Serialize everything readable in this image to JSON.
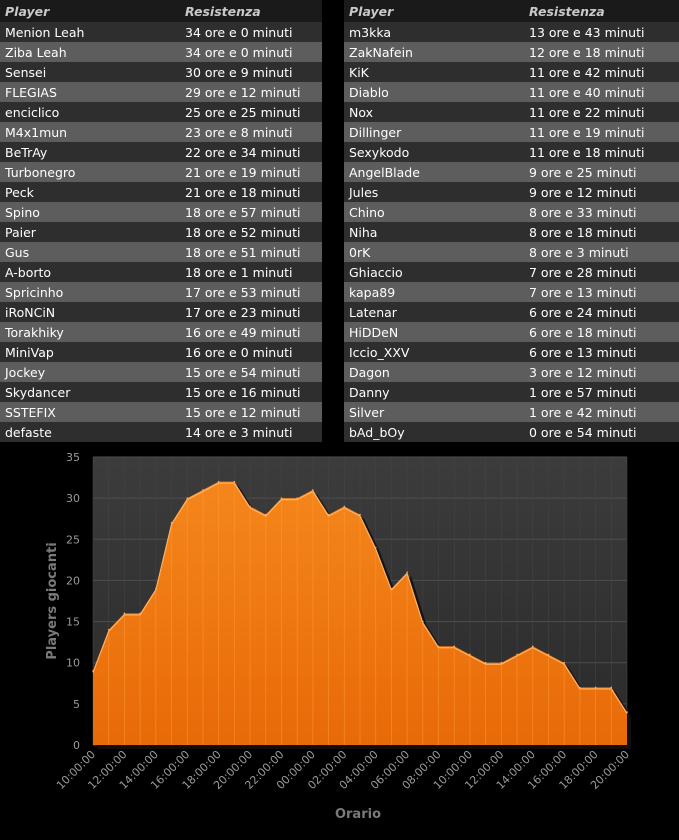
{
  "leaderboards": [
    {
      "header": {
        "player": "Player",
        "resistance": "Resistenza"
      },
      "rows": [
        [
          "Menion Leah",
          "34 ore e 0 minuti"
        ],
        [
          "Ziba Leah",
          "34 ore e 0 minuti"
        ],
        [
          "Sensei",
          "30 ore e 9 minuti"
        ],
        [
          "FLEGIAS",
          "29 ore e 12 minuti"
        ],
        [
          "enciclico",
          "25 ore e 25 minuti"
        ],
        [
          "M4x1mun",
          "23 ore e 8 minuti"
        ],
        [
          "BeTrAy",
          "22 ore e 34 minuti"
        ],
        [
          "Turbonegro",
          "21 ore e 19 minuti"
        ],
        [
          "Peck",
          "21 ore e 18 minuti"
        ],
        [
          "Spino",
          "18 ore e 57 minuti"
        ],
        [
          "Paier",
          "18 ore e 52 minuti"
        ],
        [
          "Gus",
          "18 ore e 51 minuti"
        ],
        [
          "A-borto",
          "18 ore e 1 minuti"
        ],
        [
          "Spricinho",
          "17 ore e 53 minuti"
        ],
        [
          "iRoNCiN",
          "17 ore e 23 minuti"
        ],
        [
          "Torakhiky",
          "16 ore e 49 minuti"
        ],
        [
          "MiniVap",
          "16 ore e 0 minuti"
        ],
        [
          "Jockey",
          "15 ore e 54 minuti"
        ],
        [
          "Skydancer",
          "15 ore e 16 minuti"
        ],
        [
          "SSTEFIX",
          "15 ore e 12 minuti"
        ],
        [
          "defaste",
          "14 ore e 3 minuti"
        ]
      ]
    },
    {
      "header": {
        "player": "Player",
        "resistance": "Resistenza"
      },
      "rows": [
        [
          "m3kka",
          "13 ore e 43 minuti"
        ],
        [
          "ZakNafein",
          "12 ore e 18 minuti"
        ],
        [
          "KiK",
          "11 ore e 42 minuti"
        ],
        [
          "Diablo",
          "11 ore e 40 minuti"
        ],
        [
          "Nox",
          "11 ore e 22 minuti"
        ],
        [
          "Dillinger",
          "11 ore e 19 minuti"
        ],
        [
          "Sexykodo",
          "11 ore e 18 minuti"
        ],
        [
          "AngelBlade",
          "9 ore e 25 minuti"
        ],
        [
          "Jules",
          "9 ore e 12 minuti"
        ],
        [
          "Chino",
          "8 ore e 33 minuti"
        ],
        [
          "Niha",
          "8 ore e 18 minuti"
        ],
        [
          "0rK",
          "8 ore e 3 minuti"
        ],
        [
          "Ghiaccio",
          "7 ore e 28 minuti"
        ],
        [
          "kapa89",
          "7 ore e 13 minuti"
        ],
        [
          "Latenar",
          "6 ore e 24 minuti"
        ],
        [
          "HiDDeN",
          "6 ore e 18 minuti"
        ],
        [
          "Iccio_XXV",
          "6 ore e 13 minuti"
        ],
        [
          "Dagon",
          "3 ore e 12 minuti"
        ],
        [
          "Danny",
          "1 ore e 57 minuti"
        ],
        [
          "Silver",
          "1 ore e 42 minuti"
        ],
        [
          "bAd_bOy",
          "0 ore e 54 minuti"
        ]
      ]
    }
  ],
  "colors": {
    "area": "#f07a12",
    "area_light": "#ffb060",
    "plot_bg": "#3a3a3a",
    "axis_text": "#7a7a7a"
  },
  "chart_data": {
    "type": "area",
    "xlabel": "Orario",
    "ylabel": "Players giocanti",
    "ylim": [
      0,
      35
    ],
    "yticks": [
      0,
      5,
      10,
      15,
      20,
      25,
      30,
      35
    ],
    "x_tick_labels": [
      "10:00:00",
      "12:00:00",
      "14:00:00",
      "16:00:00",
      "18:00:00",
      "20:00:00",
      "22:00:00",
      "00:00:00",
      "02:00:00",
      "04:00:00",
      "06:00:00",
      "08:00:00",
      "10:00:00",
      "12:00:00",
      "14:00:00",
      "16:00:00",
      "18:00:00",
      "20:00:00"
    ],
    "grid": true,
    "legend": "none",
    "series": [
      {
        "values": [
          9,
          14,
          16,
          16,
          19,
          27,
          30,
          31,
          32,
          32,
          29,
          28,
          30,
          30,
          31,
          28,
          29,
          28,
          24,
          19,
          21,
          15,
          12,
          12,
          11,
          10,
          10,
          11,
          12,
          11,
          10,
          7,
          7,
          7,
          4
        ]
      }
    ]
  }
}
